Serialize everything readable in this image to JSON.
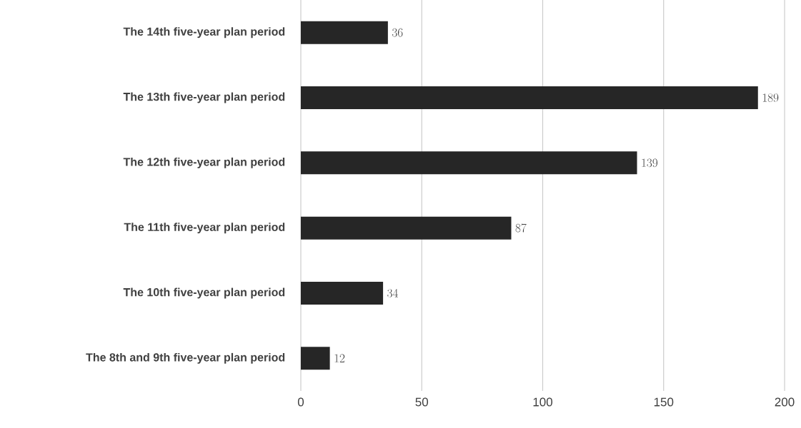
{
  "chart_data": {
    "type": "bar",
    "orientation": "horizontal",
    "categories": [
      "The 14th five-year plan period",
      "The 13th five-year plan period",
      "The 12th five-year plan period",
      "The 11th five-year plan period",
      "The 10th five-year plan period",
      "The 8th and 9th five-year plan period"
    ],
    "values": [
      36,
      189,
      139,
      87,
      34,
      12
    ],
    "color": "#262626",
    "xlim": [
      0,
      200
    ],
    "xticks": [
      0,
      50,
      100,
      150,
      200
    ],
    "grid": "x",
    "data_labels": true
  }
}
